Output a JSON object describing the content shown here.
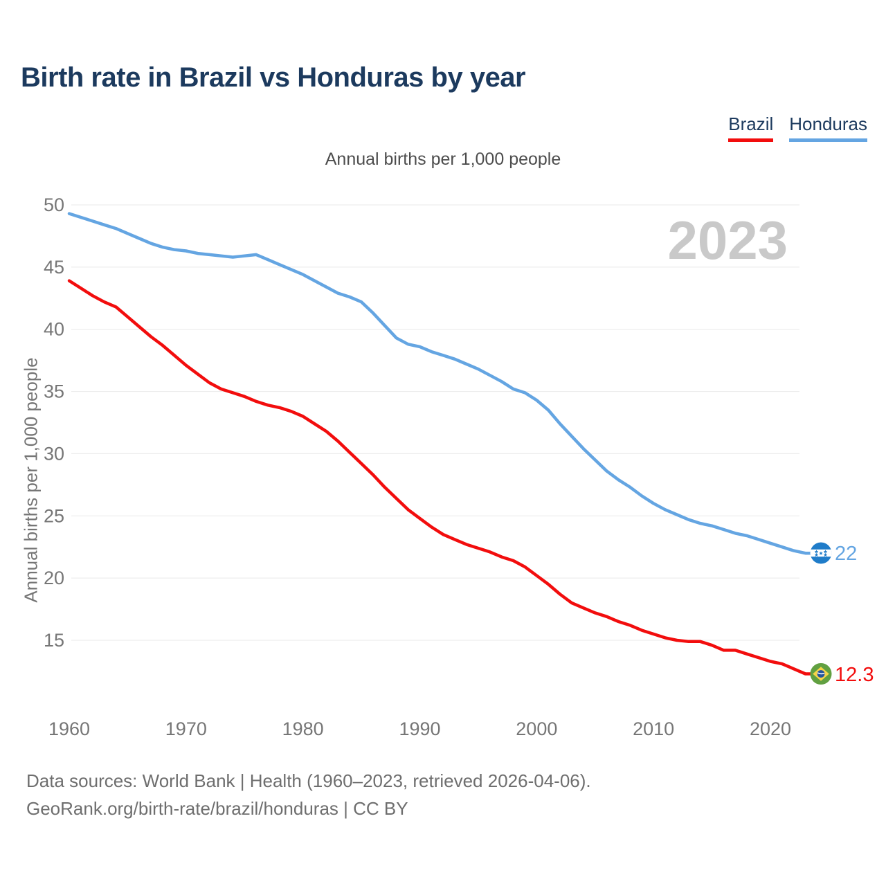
{
  "header": {
    "title": "Birth rate in Brazil vs Honduras by year"
  },
  "legend": {
    "items": [
      {
        "label": "Brazil",
        "color": "#f20d0d"
      },
      {
        "label": "Honduras",
        "color": "#64a5e2"
      }
    ]
  },
  "subtitle": "Annual births per 1,000 people",
  "watermark": "2023",
  "footer": {
    "line1": "Data sources: World Bank | Health (1960–2023, retrieved 2026-04-06).",
    "line2": "GeoRank.org/birth-rate/brazil/honduras | CC BY"
  },
  "chart_data": {
    "type": "line",
    "title": "Birth rate in Brazil vs Honduras by year",
    "subtitle": "Annual births per 1,000 people",
    "ylabel": "Annual births per 1,000 people",
    "xlabel": "",
    "grid": "horizontal",
    "legend_position": "top-right",
    "xticks": [
      1960,
      1970,
      1980,
      1990,
      2000,
      2010,
      2020
    ],
    "yticks": [
      15,
      20,
      25,
      30,
      35,
      40,
      45,
      50
    ],
    "xlim": [
      1960,
      2023
    ],
    "ylim": [
      8.6,
      50
    ],
    "x": [
      1960,
      1961,
      1962,
      1963,
      1964,
      1965,
      1966,
      1967,
      1968,
      1969,
      1970,
      1971,
      1972,
      1973,
      1974,
      1975,
      1976,
      1977,
      1978,
      1979,
      1980,
      1981,
      1982,
      1983,
      1984,
      1985,
      1986,
      1987,
      1988,
      1989,
      1990,
      1991,
      1992,
      1993,
      1994,
      1995,
      1996,
      1997,
      1998,
      1999,
      2000,
      2001,
      2002,
      2003,
      2004,
      2005,
      2006,
      2007,
      2008,
      2009,
      2010,
      2011,
      2012,
      2013,
      2014,
      2015,
      2016,
      2017,
      2018,
      2019,
      2020,
      2021,
      2022,
      2023
    ],
    "series": [
      {
        "name": "Brazil",
        "color": "#f20d0d",
        "end_label": "12.3",
        "values": [
          43.9,
          43.3,
          42.7,
          42.2,
          41.8,
          41.0,
          40.2,
          39.4,
          38.7,
          37.9,
          37.1,
          36.4,
          35.7,
          35.2,
          34.9,
          34.6,
          34.2,
          33.9,
          33.7,
          33.4,
          33.0,
          32.4,
          31.8,
          31.0,
          30.1,
          29.2,
          28.3,
          27.3,
          26.4,
          25.5,
          24.8,
          24.1,
          23.5,
          23.1,
          22.7,
          22.4,
          22.1,
          21.7,
          21.4,
          20.9,
          20.2,
          19.5,
          18.7,
          18.0,
          17.6,
          17.2,
          16.9,
          16.5,
          16.2,
          15.8,
          15.5,
          15.2,
          15.0,
          14.9,
          14.9,
          14.6,
          14.2,
          14.2,
          13.9,
          13.6,
          13.3,
          13.1,
          12.7,
          12.3
        ]
      },
      {
        "name": "Honduras",
        "color": "#64a5e2",
        "end_label": "22",
        "values": [
          49.3,
          49.0,
          48.7,
          48.4,
          48.1,
          47.7,
          47.3,
          46.9,
          46.6,
          46.4,
          46.3,
          46.1,
          46.0,
          45.9,
          45.8,
          45.9,
          46.0,
          45.6,
          45.2,
          44.8,
          44.4,
          43.9,
          43.4,
          42.9,
          42.6,
          42.2,
          41.3,
          40.3,
          39.3,
          38.8,
          38.6,
          38.2,
          37.9,
          37.6,
          37.2,
          36.8,
          36.3,
          35.8,
          35.2,
          34.9,
          34.3,
          33.5,
          32.4,
          31.4,
          30.4,
          29.5,
          28.6,
          27.9,
          27.3,
          26.6,
          26.0,
          25.5,
          25.1,
          24.7,
          24.4,
          24.2,
          23.9,
          23.6,
          23.4,
          23.1,
          22.8,
          22.5,
          22.2,
          22.0
        ]
      }
    ]
  }
}
